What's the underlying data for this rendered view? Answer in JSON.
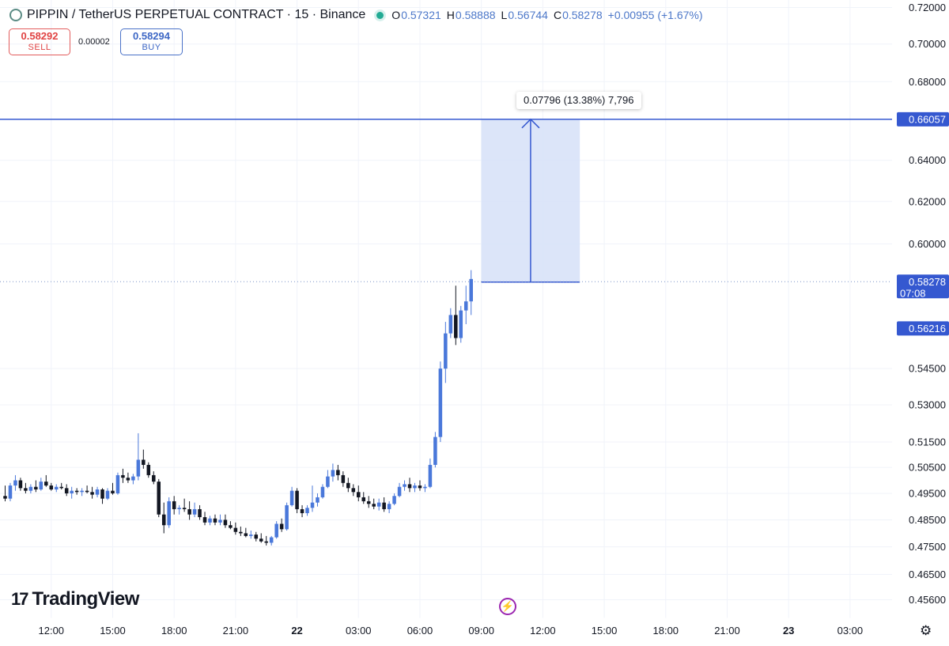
{
  "header": {
    "title": "PIPPIN / TetherUS PERPETUAL CONTRACT · 15 · Binance",
    "ohlc": [
      {
        "key": "O",
        "value": "0.57321"
      },
      {
        "key": "H",
        "value": "0.58888"
      },
      {
        "key": "L",
        "value": "0.56744"
      },
      {
        "key": "C",
        "value": "0.58278"
      }
    ],
    "change": "+0.00955 (+1.67%)"
  },
  "trade": {
    "sell_price": "0.58292",
    "sell_label": "SELL",
    "spread": "0.00002",
    "buy_price": "0.58294",
    "buy_label": "BUY"
  },
  "branding": {
    "name": "TradingView"
  },
  "measure": {
    "label": "0.07796 (13.38%) 7,796"
  },
  "colors": {
    "up": "#4a78da",
    "down": "#131722",
    "accent": "#2962ff",
    "zone": "#d6e0f8",
    "line": "#3558d0"
  },
  "chart_data": {
    "type": "candlestick",
    "interval": "15",
    "y_scale": "log",
    "ylim": [
      0.452,
      0.722
    ],
    "y_ticks": [
      "0.72000",
      "0.70000",
      "0.68000",
      "0.64000",
      "0.62000",
      "0.60000",
      "0.54500",
      "0.53000",
      "0.51500",
      "0.50500",
      "0.49500",
      "0.48500",
      "0.47500",
      "0.46500",
      "0.45600"
    ],
    "x_ticks": [
      "12:00",
      "15:00",
      "18:00",
      "21:00",
      "22",
      "03:00",
      "06:00",
      "09:00",
      "12:00",
      "15:00",
      "18:00",
      "21:00",
      "23",
      "03:00"
    ],
    "x_ticks_bold": [
      "22",
      "23"
    ],
    "price_labels": [
      {
        "value": "0.66057",
        "type": "line"
      },
      {
        "value": "0.58278",
        "time": "07:08",
        "type": "last"
      },
      {
        "value": "0.56216",
        "type": "line"
      }
    ],
    "horizontal_line": 0.66057,
    "last_price": 0.58278,
    "measure": {
      "from": 0.58261,
      "to": 0.66057,
      "delta": 0.07796,
      "percent": 13.38,
      "ticks": 7796,
      "from_bar": 93,
      "to_bar": 112
    },
    "candles": [
      [
        0.494,
        0.498,
        0.492,
        0.493
      ],
      [
        0.493,
        0.499,
        0.492,
        0.498
      ],
      [
        0.498,
        0.502,
        0.496,
        0.5
      ],
      [
        0.5,
        0.501,
        0.496,
        0.497
      ],
      [
        0.497,
        0.499,
        0.495,
        0.496
      ],
      [
        0.496,
        0.4985,
        0.495,
        0.4975
      ],
      [
        0.4975,
        0.5,
        0.4955,
        0.4965
      ],
      [
        0.4965,
        0.501,
        0.496,
        0.4995
      ],
      [
        0.4995,
        0.502,
        0.4975,
        0.498
      ],
      [
        0.498,
        0.499,
        0.496,
        0.4965
      ],
      [
        0.4965,
        0.4985,
        0.4955,
        0.4975
      ],
      [
        0.4975,
        0.499,
        0.4965,
        0.497
      ],
      [
        0.497,
        0.4985,
        0.494,
        0.495
      ],
      [
        0.495,
        0.4975,
        0.493,
        0.496
      ],
      [
        0.496,
        0.497,
        0.4945,
        0.4955
      ],
      [
        0.4955,
        0.497,
        0.494,
        0.496
      ],
      [
        0.496,
        0.498,
        0.495,
        0.4955
      ],
      [
        0.4955,
        0.4975,
        0.493,
        0.4945
      ],
      [
        0.4945,
        0.4975,
        0.4935,
        0.4965
      ],
      [
        0.4965,
        0.497,
        0.491,
        0.493
      ],
      [
        0.493,
        0.497,
        0.4925,
        0.496
      ],
      [
        0.496,
        0.499,
        0.4945,
        0.495
      ],
      [
        0.495,
        0.503,
        0.4945,
        0.502
      ],
      [
        0.502,
        0.5045,
        0.499,
        0.501
      ],
      [
        0.501,
        0.503,
        0.499,
        0.5
      ],
      [
        0.5,
        0.5025,
        0.4985,
        0.5015
      ],
      [
        0.5015,
        0.5185,
        0.5,
        0.508
      ],
      [
        0.508,
        0.512,
        0.5045,
        0.506
      ],
      [
        0.506,
        0.507,
        0.501,
        0.502
      ],
      [
        0.502,
        0.5035,
        0.4985,
        0.4995
      ],
      [
        0.4995,
        0.5005,
        0.486,
        0.487
      ],
      [
        0.487,
        0.4915,
        0.48,
        0.483
      ],
      [
        0.483,
        0.4935,
        0.482,
        0.492
      ],
      [
        0.492,
        0.494,
        0.487,
        0.489
      ],
      [
        0.489,
        0.4905,
        0.487,
        0.4895
      ],
      [
        0.4895,
        0.493,
        0.488,
        0.489
      ],
      [
        0.489,
        0.492,
        0.485,
        0.487
      ],
      [
        0.487,
        0.4915,
        0.486,
        0.489
      ],
      [
        0.489,
        0.4905,
        0.485,
        0.486
      ],
      [
        0.486,
        0.488,
        0.483,
        0.484
      ],
      [
        0.484,
        0.4865,
        0.483,
        0.4855
      ],
      [
        0.4855,
        0.487,
        0.483,
        0.484
      ],
      [
        0.484,
        0.487,
        0.483,
        0.485
      ],
      [
        0.485,
        0.487,
        0.482,
        0.483
      ],
      [
        0.483,
        0.4845,
        0.4815,
        0.482
      ],
      [
        0.482,
        0.484,
        0.4795,
        0.4805
      ],
      [
        0.4805,
        0.4825,
        0.479,
        0.48
      ],
      [
        0.48,
        0.482,
        0.4785,
        0.479
      ],
      [
        0.479,
        0.481,
        0.478,
        0.4795
      ],
      [
        0.4795,
        0.4805,
        0.477,
        0.478
      ],
      [
        0.478,
        0.48,
        0.4765,
        0.477
      ],
      [
        0.477,
        0.479,
        0.4755,
        0.4765
      ],
      [
        0.4765,
        0.479,
        0.4755,
        0.4785
      ],
      [
        0.4785,
        0.4845,
        0.478,
        0.4835
      ],
      [
        0.4835,
        0.4855,
        0.4805,
        0.4815
      ],
      [
        0.4815,
        0.4915,
        0.481,
        0.4905
      ],
      [
        0.4905,
        0.4975,
        0.49,
        0.496
      ],
      [
        0.496,
        0.497,
        0.4875,
        0.489
      ],
      [
        0.489,
        0.4905,
        0.486,
        0.4875
      ],
      [
        0.4875,
        0.4905,
        0.4865,
        0.4895
      ],
      [
        0.4895,
        0.498,
        0.488,
        0.4915
      ],
      [
        0.4915,
        0.495,
        0.49,
        0.4935
      ],
      [
        0.4935,
        0.4985,
        0.493,
        0.4975
      ],
      [
        0.4975,
        0.504,
        0.497,
        0.5015
      ],
      [
        0.5015,
        0.5065,
        0.4995,
        0.504
      ],
      [
        0.504,
        0.506,
        0.5,
        0.502
      ],
      [
        0.502,
        0.5035,
        0.4975,
        0.499
      ],
      [
        0.499,
        0.501,
        0.4955,
        0.497
      ],
      [
        0.497,
        0.4985,
        0.494,
        0.4955
      ],
      [
        0.4955,
        0.498,
        0.492,
        0.4935
      ],
      [
        0.4935,
        0.4955,
        0.491,
        0.492
      ],
      [
        0.492,
        0.494,
        0.4895,
        0.491
      ],
      [
        0.491,
        0.493,
        0.489,
        0.49
      ],
      [
        0.49,
        0.493,
        0.4885,
        0.4915
      ],
      [
        0.4915,
        0.4935,
        0.488,
        0.489
      ],
      [
        0.489,
        0.492,
        0.4875,
        0.491
      ],
      [
        0.491,
        0.495,
        0.4905,
        0.494
      ],
      [
        0.494,
        0.499,
        0.4935,
        0.4975
      ],
      [
        0.4975,
        0.5,
        0.496,
        0.4985
      ],
      [
        0.4985,
        0.501,
        0.4955,
        0.497
      ],
      [
        0.497,
        0.499,
        0.4955,
        0.498
      ],
      [
        0.498,
        0.5,
        0.496,
        0.497
      ],
      [
        0.497,
        0.4985,
        0.4955,
        0.4975
      ],
      [
        0.4975,
        0.5085,
        0.497,
        0.506
      ],
      [
        0.506,
        0.519,
        0.505,
        0.517
      ],
      [
        0.517,
        0.548,
        0.515,
        0.545
      ],
      [
        0.545,
        0.565,
        0.539,
        0.56
      ],
      [
        0.56,
        0.571,
        0.558,
        0.568
      ],
      [
        0.568,
        0.581,
        0.555,
        0.558
      ],
      [
        0.558,
        0.572,
        0.556,
        0.57
      ],
      [
        0.57,
        0.581,
        0.564,
        0.574
      ],
      [
        0.574,
        0.588,
        0.568,
        0.584
      ]
    ]
  }
}
